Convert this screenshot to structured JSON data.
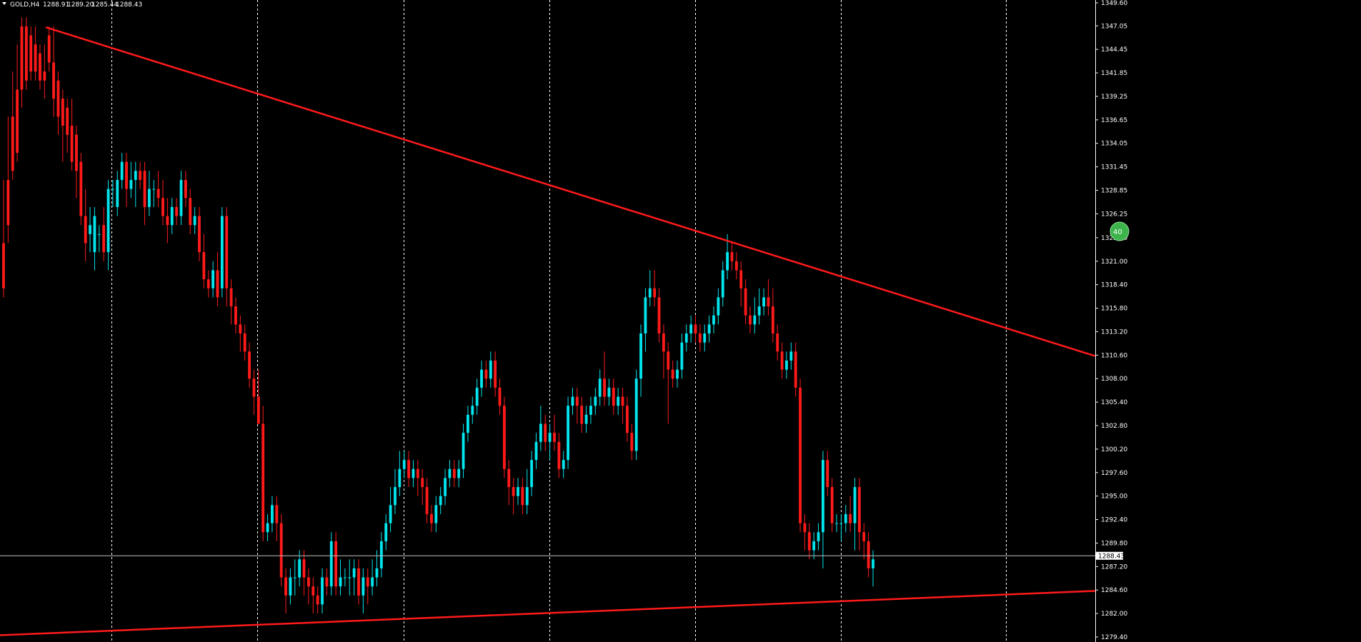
{
  "header": {
    "symbol": "GOLD,H4",
    "open": "1288.91",
    "high": "1289.20",
    "low": "1285.44",
    "close": "1288.43"
  },
  "current_price_label": "1288.43",
  "badge_text": "40",
  "colors": {
    "background": "#000000",
    "bull": "#00e5ee",
    "bear": "#ff1a1a",
    "trendline": "#ff1a1a",
    "grid": "#ffffff",
    "badge": "#3cb44b"
  },
  "chart_data": {
    "type": "candlestick",
    "ylim": [
      1279.4,
      1349.6
    ],
    "y_tick_labels": [
      "1349.60",
      "1347.05",
      "1344.45",
      "1341.85",
      "1339.25",
      "1336.65",
      "1334.05",
      "1331.45",
      "1328.85",
      "1326.25",
      "1323.60",
      "1321.00",
      "1318.40",
      "1315.80",
      "1313.20",
      "1310.60",
      "1308.00",
      "1305.40",
      "1302.80",
      "1300.20",
      "1297.60",
      "1295.00",
      "1292.40",
      "1289.80",
      "1287.20",
      "1284.60",
      "1282.00",
      "1279.40"
    ],
    "grid": "vertical dashed period separators",
    "trendlines": [
      {
        "name": "",
        "from": [
          64,
          1346.9
        ],
        "to": [
          1533,
          1310.5
        ]
      },
      {
        "name": "",
        "from": [
          0,
          1279.6
        ],
        "to": [
          1533,
          1284.5
        ]
      }
    ],
    "last_price": 1288.43,
    "candles": [
      [
        1323,
        1318,
        1330,
        1317
      ],
      [
        1330,
        1325,
        1337,
        1323
      ],
      [
        1337,
        1331,
        1342,
        1330
      ],
      [
        1340,
        1333,
        1345,
        1332
      ],
      [
        1347,
        1340,
        1348,
        1338
      ],
      [
        1347,
        1341,
        1348,
        1340
      ],
      [
        1346,
        1342,
        1347,
        1341
      ],
      [
        1345,
        1342,
        1347,
        1341
      ],
      [
        1344,
        1341,
        1345,
        1340
      ],
      [
        1342,
        1341,
        1345,
        1339
      ],
      [
        1346,
        1343,
        1347,
        1342
      ],
      [
        1343,
        1339,
        1347,
        1337
      ],
      [
        1341,
        1337,
        1342,
        1335
      ],
      [
        1339,
        1336,
        1340,
        1332
      ],
      [
        1338,
        1335,
        1339,
        1333
      ],
      [
        1336,
        1332,
        1339,
        1331
      ],
      [
        1335,
        1331,
        1336,
        1328
      ],
      [
        1332,
        1326,
        1333,
        1325
      ],
      [
        1326,
        1323,
        1329,
        1321
      ],
      [
        1324,
        1325,
        1327,
        1322
      ],
      [
        1322,
        1326,
        1327,
        1320
      ],
      [
        1324,
        1324,
        1325,
        1322
      ],
      [
        1325,
        1322,
        1327,
        1321
      ],
      [
        1322,
        1329,
        1330,
        1320
      ],
      [
        1329,
        1329,
        1330,
        1327
      ],
      [
        1327,
        1330,
        1331,
        1326
      ],
      [
        1330,
        1332,
        1333,
        1329
      ],
      [
        1332,
        1329,
        1333,
        1327
      ],
      [
        1329,
        1330,
        1332,
        1328
      ],
      [
        1330,
        1331,
        1332,
        1327
      ],
      [
        1331,
        1330,
        1332,
        1329
      ],
      [
        1331,
        1327,
        1332,
        1325
      ],
      [
        1327,
        1329,
        1331,
        1326
      ],
      [
        1329,
        1329,
        1330,
        1327
      ],
      [
        1329,
        1328,
        1331,
        1327
      ],
      [
        1328,
        1326,
        1330,
        1325
      ],
      [
        1326,
        1325,
        1328,
        1323
      ],
      [
        1325,
        1327,
        1328,
        1324
      ],
      [
        1327,
        1326,
        1328,
        1325
      ],
      [
        1326,
        1330,
        1331,
        1325
      ],
      [
        1330,
        1328,
        1331,
        1327
      ],
      [
        1328,
        1325,
        1329,
        1324
      ],
      [
        1325,
        1326,
        1327,
        1324
      ],
      [
        1326,
        1322,
        1327,
        1321
      ],
      [
        1322,
        1319,
        1324,
        1318
      ],
      [
        1319,
        1318,
        1320,
        1317
      ],
      [
        1318,
        1320,
        1321,
        1317
      ],
      [
        1320,
        1317,
        1322,
        1316
      ],
      [
        1318,
        1326,
        1327,
        1317
      ],
      [
        1326,
        1318,
        1327,
        1316
      ],
      [
        1318,
        1316,
        1319,
        1314
      ],
      [
        1316,
        1314,
        1317,
        1313
      ],
      [
        1314,
        1313,
        1315,
        1311
      ],
      [
        1313,
        1311,
        1314,
        1310
      ],
      [
        1311,
        1308,
        1312,
        1307
      ],
      [
        1308,
        1306,
        1309,
        1304
      ],
      [
        1306,
        1303,
        1309,
        1303
      ],
      [
        1303,
        1291,
        1305,
        1290
      ],
      [
        1291,
        1292,
        1293,
        1290
      ],
      [
        1292,
        1294,
        1295,
        1291
      ],
      [
        1294,
        1292,
        1295,
        1290
      ],
      [
        1292,
        1286,
        1293,
        1285
      ],
      [
        1286,
        1284,
        1287,
        1282
      ],
      [
        1284,
        1286,
        1287,
        1283
      ],
      [
        1286,
        1286,
        1288,
        1284
      ],
      [
        1286,
        1288,
        1289,
        1285
      ],
      [
        1288,
        1286,
        1289,
        1284
      ],
      [
        1286,
        1285,
        1287,
        1283
      ],
      [
        1285,
        1284,
        1286,
        1282
      ],
      [
        1284,
        1283,
        1285,
        1282
      ],
      [
        1283,
        1286,
        1287,
        1282
      ],
      [
        1286,
        1285,
        1287,
        1284
      ],
      [
        1285,
        1290,
        1291,
        1284
      ],
      [
        1290,
        1285,
        1291,
        1284
      ],
      [
        1285,
        1286,
        1288,
        1284
      ],
      [
        1286,
        1286,
        1287,
        1285
      ],
      [
        1286,
        1286,
        1288,
        1284
      ],
      [
        1286,
        1287,
        1288,
        1284
      ],
      [
        1287,
        1284,
        1288,
        1283
      ],
      [
        1284,
        1286,
        1287,
        1282
      ],
      [
        1286,
        1285,
        1287,
        1283
      ],
      [
        1285,
        1286,
        1288,
        1284
      ],
      [
        1286,
        1287,
        1289,
        1285
      ],
      [
        1287,
        1290,
        1291,
        1286
      ],
      [
        1290,
        1292,
        1293,
        1289
      ],
      [
        1292,
        1294,
        1296,
        1291
      ],
      [
        1294,
        1296,
        1298,
        1293
      ],
      [
        1296,
        1298,
        1300,
        1295
      ],
      [
        1298,
        1299,
        1300,
        1297
      ],
      [
        1299,
        1297,
        1300,
        1296
      ],
      [
        1297,
        1298,
        1299,
        1296
      ],
      [
        1298,
        1297,
        1299,
        1295
      ],
      [
        1297,
        1296,
        1298,
        1294
      ],
      [
        1296,
        1293,
        1297,
        1292
      ],
      [
        1293,
        1292,
        1294,
        1291
      ],
      [
        1292,
        1294,
        1295,
        1291
      ],
      [
        1294,
        1295,
        1296,
        1293
      ],
      [
        1295,
        1297,
        1298,
        1294
      ],
      [
        1297,
        1298,
        1299,
        1296
      ],
      [
        1298,
        1297,
        1299,
        1296
      ],
      [
        1297,
        1298,
        1299,
        1296
      ],
      [
        1298,
        1302,
        1303,
        1297
      ],
      [
        1302,
        1304,
        1305,
        1301
      ],
      [
        1304,
        1305,
        1306,
        1303
      ],
      [
        1305,
        1307,
        1308,
        1304
      ],
      [
        1307,
        1309,
        1310,
        1306
      ],
      [
        1309,
        1308,
        1310,
        1307
      ],
      [
        1308,
        1310,
        1311,
        1307
      ],
      [
        1310,
        1307,
        1311,
        1306
      ],
      [
        1307,
        1305,
        1308,
        1304
      ],
      [
        1305,
        1298,
        1306,
        1297
      ],
      [
        1298,
        1296,
        1299,
        1294
      ],
      [
        1296,
        1295,
        1297,
        1293
      ],
      [
        1295,
        1296,
        1297,
        1294
      ],
      [
        1296,
        1294,
        1297,
        1293
      ],
      [
        1294,
        1296,
        1298,
        1293
      ],
      [
        1296,
        1299,
        1300,
        1295
      ],
      [
        1299,
        1301,
        1302,
        1298
      ],
      [
        1301,
        1303,
        1305,
        1300
      ],
      [
        1303,
        1301,
        1304,
        1300
      ],
      [
        1301,
        1302,
        1303,
        1299
      ],
      [
        1302,
        1301,
        1304,
        1300
      ],
      [
        1301,
        1298,
        1302,
        1297
      ],
      [
        1298,
        1299,
        1300,
        1297
      ],
      [
        1299,
        1305,
        1306,
        1298
      ],
      [
        1305,
        1306,
        1307,
        1304
      ],
      [
        1306,
        1305,
        1307,
        1303
      ],
      [
        1305,
        1303,
        1306,
        1302
      ],
      [
        1303,
        1304,
        1305,
        1302
      ],
      [
        1304,
        1305,
        1306,
        1303
      ],
      [
        1305,
        1306,
        1307,
        1304
      ],
      [
        1306,
        1308,
        1309,
        1305
      ],
      [
        1308,
        1306,
        1311,
        1305
      ],
      [
        1306,
        1307,
        1308,
        1305
      ],
      [
        1307,
        1305,
        1308,
        1304
      ],
      [
        1305,
        1306,
        1307,
        1304
      ],
      [
        1306,
        1305,
        1307,
        1303
      ],
      [
        1305,
        1302,
        1306,
        1301
      ],
      [
        1302,
        1300,
        1303,
        1299
      ],
      [
        1300,
        1308,
        1309,
        1299
      ],
      [
        1308,
        1313,
        1314,
        1306
      ],
      [
        1313,
        1317,
        1318,
        1311
      ],
      [
        1317,
        1318,
        1320,
        1316
      ],
      [
        1318,
        1317,
        1320,
        1316
      ],
      [
        1317,
        1313,
        1318,
        1312
      ],
      [
        1313,
        1311,
        1314,
        1308
      ],
      [
        1311,
        1309,
        1312,
        1303
      ],
      [
        1309,
        1308,
        1310,
        1307
      ],
      [
        1308,
        1309,
        1310,
        1307
      ],
      [
        1309,
        1312,
        1313,
        1308
      ],
      [
        1312,
        1313,
        1314,
        1311
      ],
      [
        1313,
        1314,
        1315,
        1312
      ],
      [
        1314,
        1313,
        1315,
        1312
      ],
      [
        1313,
        1312,
        1314,
        1311
      ],
      [
        1312,
        1313,
        1314,
        1311
      ],
      [
        1313,
        1314,
        1315,
        1312
      ],
      [
        1314,
        1315,
        1316,
        1313
      ],
      [
        1315,
        1317,
        1318,
        1314
      ],
      [
        1317,
        1320,
        1321,
        1316
      ],
      [
        1320,
        1322,
        1324,
        1319
      ],
      [
        1322,
        1321,
        1323,
        1320
      ],
      [
        1321,
        1320,
        1322,
        1319
      ],
      [
        1320,
        1318,
        1321,
        1316
      ],
      [
        1318,
        1315,
        1319,
        1314
      ],
      [
        1315,
        1314,
        1316,
        1313
      ],
      [
        1314,
        1315,
        1317,
        1313
      ],
      [
        1315,
        1316,
        1318,
        1314
      ],
      [
        1316,
        1317,
        1318,
        1315
      ],
      [
        1317,
        1316,
        1319,
        1315
      ],
      [
        1316,
        1313,
        1318,
        1312
      ],
      [
        1313,
        1311,
        1314,
        1310
      ],
      [
        1311,
        1309,
        1312,
        1308
      ],
      [
        1309,
        1310,
        1311,
        1308
      ],
      [
        1310,
        1311,
        1312,
        1309
      ],
      [
        1311,
        1307,
        1312,
        1306
      ],
      [
        1307,
        1292,
        1308,
        1291
      ],
      [
        1292,
        1291,
        1293,
        1289
      ],
      [
        1291,
        1289,
        1292,
        1288
      ],
      [
        1289,
        1290,
        1291,
        1288
      ],
      [
        1290,
        1291,
        1292,
        1289
      ],
      [
        1291,
        1299,
        1300,
        1287
      ],
      [
        1299,
        1296,
        1300,
        1295
      ],
      [
        1296,
        1292,
        1297,
        1291
      ],
      [
        1292,
        1292,
        1293,
        1291
      ],
      [
        1292,
        1292,
        1293,
        1290
      ],
      [
        1292,
        1293,
        1294,
        1291
      ],
      [
        1293,
        1292,
        1295,
        1291
      ],
      [
        1292,
        1296,
        1297,
        1289
      ],
      [
        1296,
        1291,
        1297,
        1289
      ],
      [
        1291,
        1290,
        1292,
        1288
      ],
      [
        1290,
        1287,
        1291,
        1286
      ],
      [
        1287,
        1288,
        1289,
        1285
      ]
    ]
  }
}
